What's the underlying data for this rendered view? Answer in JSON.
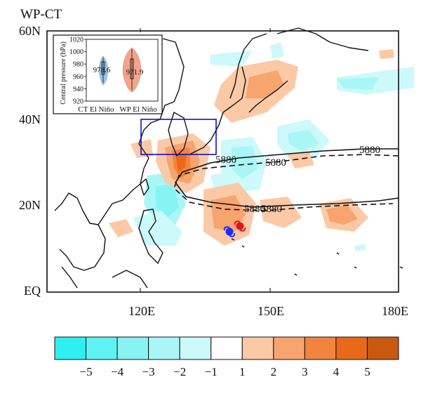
{
  "title": "WP-CT",
  "map": {
    "lat_labels": [
      "60N",
      "40N",
      "20N",
      "EQ"
    ],
    "lat_values": [
      60,
      40,
      20,
      0
    ],
    "lon_labels": [
      "120E",
      "150E",
      "180E"
    ],
    "lon_values": [
      120,
      150,
      180
    ],
    "extent": {
      "lon": [
        100,
        181
      ],
      "lat": [
        0,
        61
      ]
    },
    "contour_label": "5880",
    "box_region": {
      "lon": [
        120,
        138
      ],
      "lat": [
        32,
        40
      ]
    },
    "colors": {
      "coast": "#111111",
      "box": "#1010c8",
      "typhoon_ct": "#1a2cff",
      "typhoon_wp": "#e0141e"
    }
  },
  "inset": {
    "ylabel": "Central pressure (hPa)",
    "yticks": [
      "1020",
      "1000",
      "980",
      "960",
      "940",
      "920"
    ],
    "ytick_values": [
      1020,
      1000,
      980,
      960,
      940,
      920
    ],
    "ylim": [
      920,
      1020
    ],
    "categories": [
      "CT El Niño",
      "WP El Niño"
    ],
    "mean_labels": [
      "978.6",
      "971.9"
    ],
    "means": [
      978.6,
      971.9
    ],
    "colors": [
      "#9ec4e6",
      "#f2a58a"
    ]
  },
  "colorbar": {
    "labels": [
      "−5",
      "−4",
      "−3",
      "−2",
      "−1",
      "1",
      "2",
      "3",
      "4",
      "5"
    ],
    "colors": [
      "#2ff0f0",
      "#5ff2f2",
      "#87f3f3",
      "#aaf6f6",
      "#ccf9f9",
      "#ffffff",
      "#fbc9a6",
      "#f7a46e",
      "#f2853e",
      "#e86a18",
      "#c85a10"
    ]
  }
}
